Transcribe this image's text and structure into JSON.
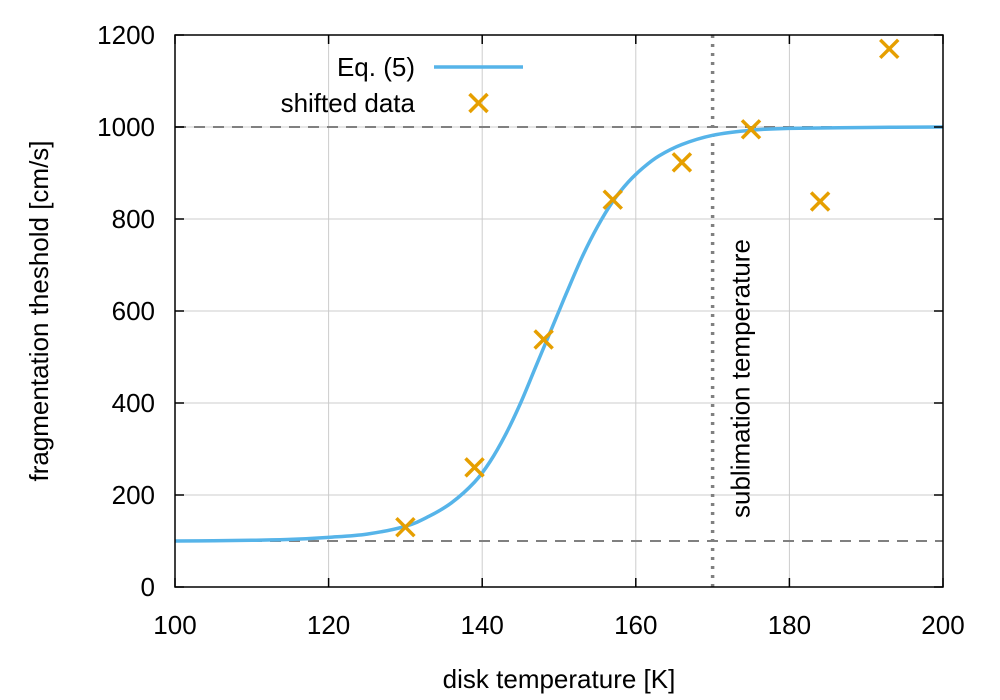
{
  "chart_data": {
    "type": "line",
    "title": "",
    "xlabel": "disk temperature [K]",
    "ylabel": "fragmentation theshold [cm/s]",
    "xlim": [
      100,
      200
    ],
    "ylim": [
      0,
      1200
    ],
    "xticks": [
      100,
      120,
      140,
      160,
      180,
      200
    ],
    "yticks": [
      0,
      200,
      400,
      600,
      800,
      1000,
      1200
    ],
    "grid": true,
    "legend_position": "top-center",
    "series": [
      {
        "name": "Eq. (5)",
        "kind": "line",
        "color": "#56b4e9",
        "x": [
          100,
          105,
          110,
          115,
          120,
          125,
          130,
          133,
          136,
          139,
          141,
          143,
          145,
          147,
          149,
          150,
          151,
          153,
          155,
          157,
          159,
          161,
          163,
          166,
          170,
          175,
          180,
          190,
          200
        ],
        "y": [
          100,
          100.5,
          101.5,
          103.5,
          108,
          115,
          132,
          153,
          183,
          228,
          272,
          330,
          400,
          480,
          560,
          600,
          640,
          717,
          783,
          838,
          880,
          912,
          937,
          962,
          982,
          993,
          997,
          999,
          1000
        ]
      },
      {
        "name": "shifted data",
        "kind": "scatter",
        "color": "#e69f00",
        "x": [
          130,
          139,
          148,
          157,
          166,
          175,
          184,
          193
        ],
        "y": [
          130,
          260,
          538,
          842,
          923,
          995,
          838,
          1170
        ]
      }
    ],
    "reference_lines": [
      {
        "orientation": "horizontal",
        "value": 1000,
        "style": "dashed",
        "color": "#808080"
      },
      {
        "orientation": "horizontal",
        "value": 100,
        "style": "dashed",
        "color": "#808080"
      },
      {
        "orientation": "vertical",
        "value": 170,
        "style": "dotted",
        "color": "#808080",
        "label": "sublimation temperature"
      }
    ]
  }
}
